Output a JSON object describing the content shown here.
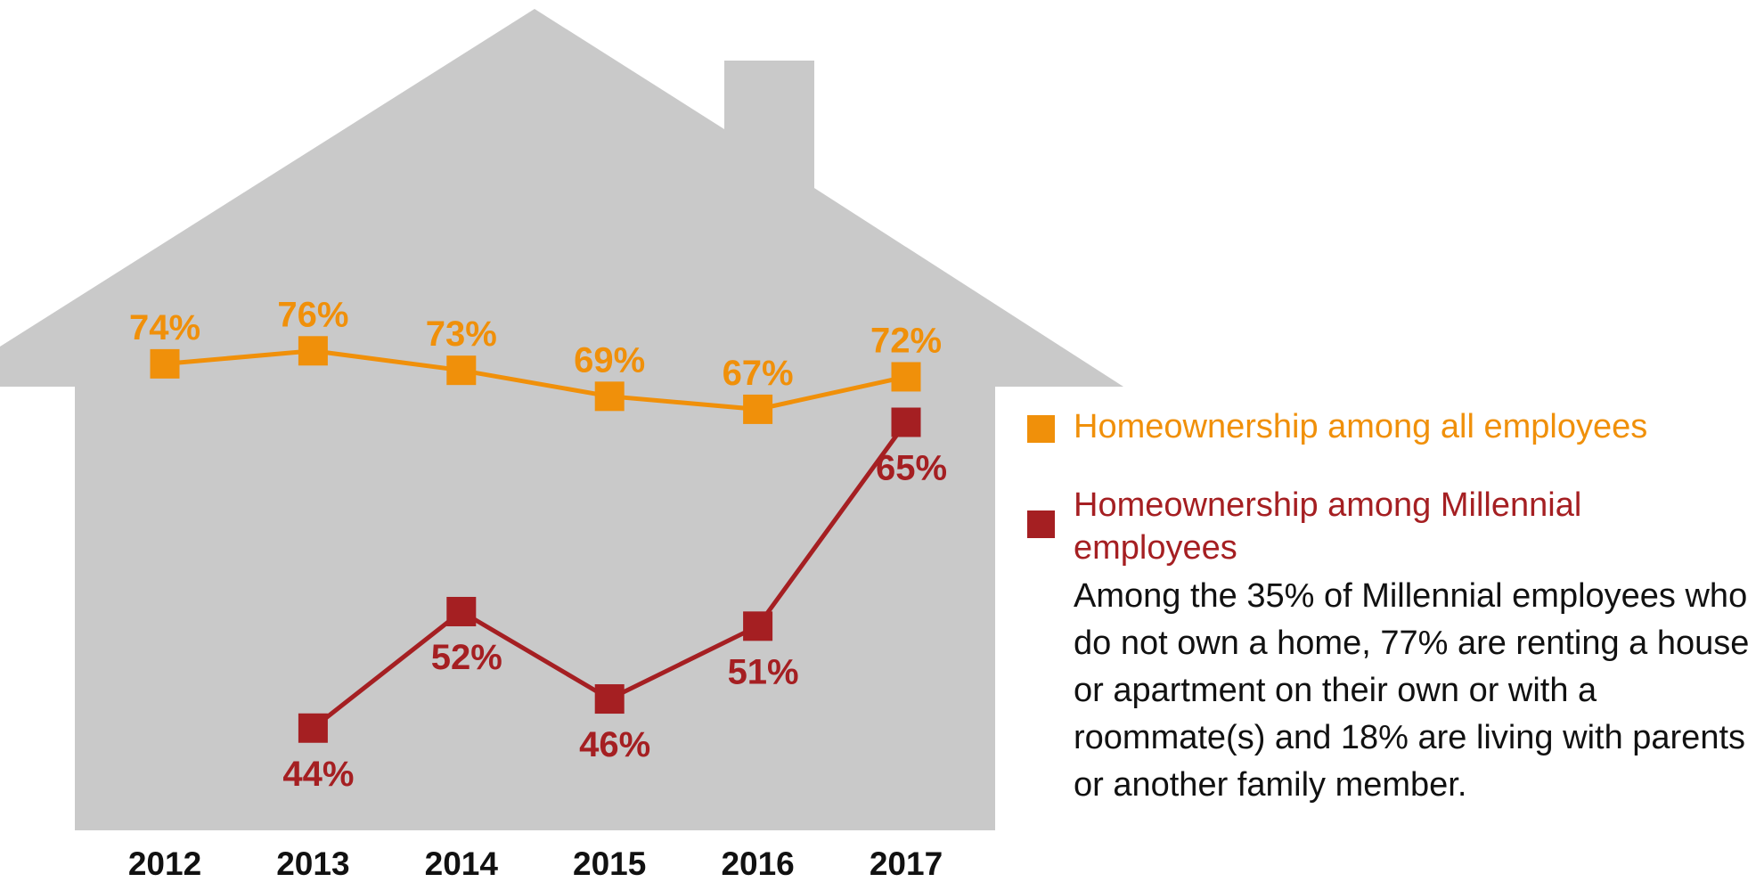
{
  "chart_data": {
    "type": "line",
    "categories": [
      "2012",
      "2013",
      "2014",
      "2015",
      "2016",
      "2017"
    ],
    "series": [
      {
        "name": "Homeownership among all employees",
        "color": "#f0900a",
        "values": [
          74,
          76,
          73,
          69,
          67,
          72
        ],
        "value_labels": [
          "74%",
          "76%",
          "73%",
          "69%",
          "67%",
          "72%"
        ]
      },
      {
        "name": "Homeownership among Millennial employees",
        "color": "#a51f22",
        "axis": "y2",
        "values": [
          null,
          44,
          52,
          46,
          51,
          65
        ],
        "value_labels": [
          null,
          "44%",
          "52%",
          "46%",
          "51%",
          "65%"
        ]
      }
    ],
    "ylim": [
      0,
      130
    ],
    "y2lim": [
      36,
      94
    ],
    "annotation": "Among the 35% of Millennial employees who do not own a home, 77% are renting a house or apartment on their own or with a roommate(s) and 18% are living with parents or another family member."
  }
}
